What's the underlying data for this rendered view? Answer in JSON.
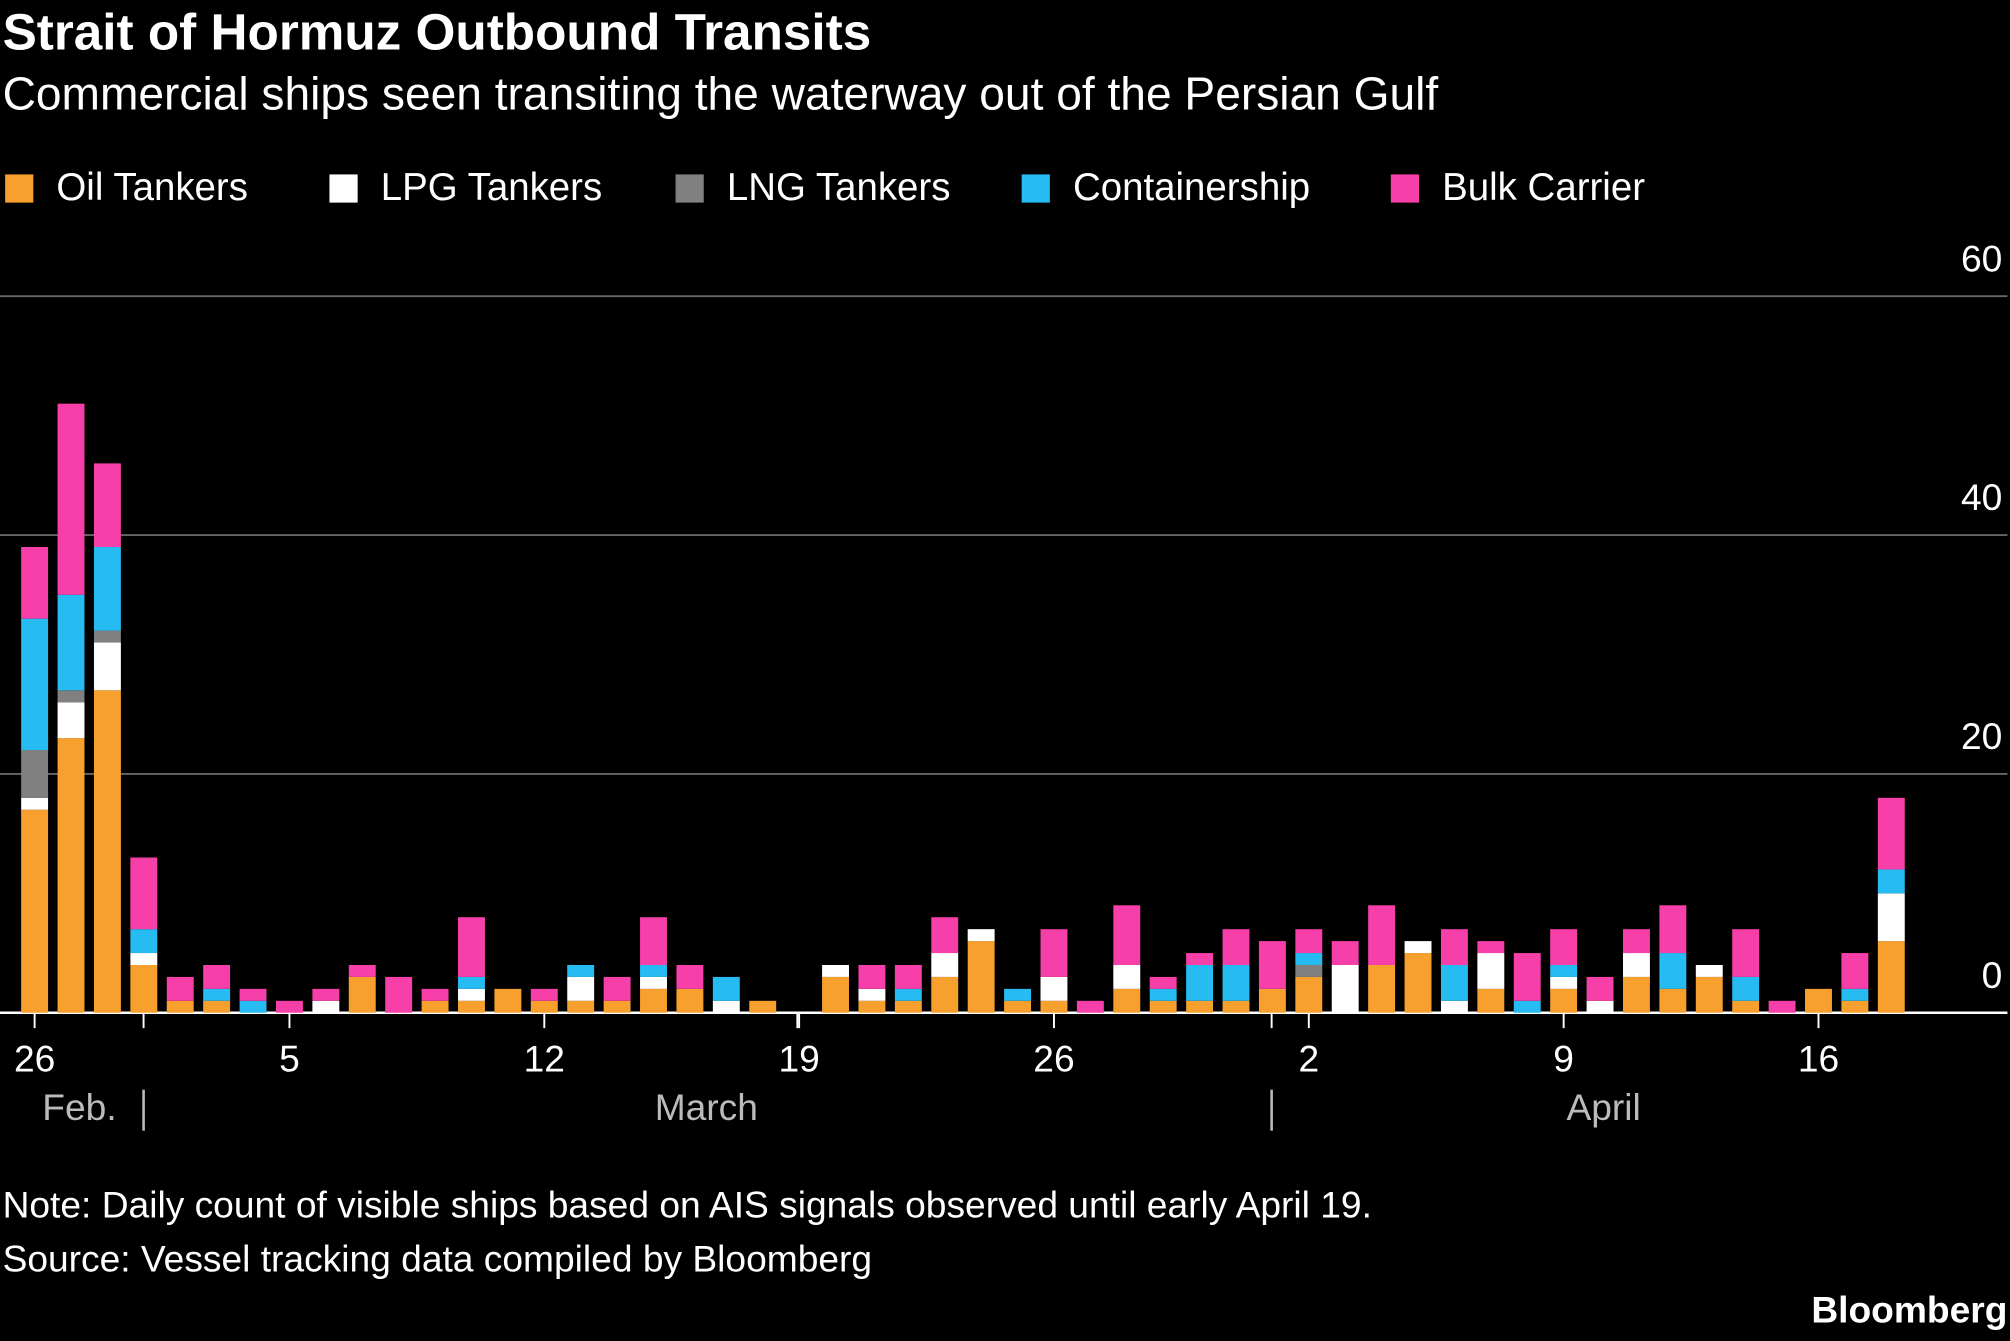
{
  "chart_data": {
    "type": "stacked-bar",
    "title": "Strait of Hormuz Outbound Transits",
    "subtitle": "Commercial ships seen transiting the waterway out of the Persian Gulf",
    "categories": [
      "26",
      null,
      null,
      null,
      null,
      null,
      null,
      "5",
      null,
      null,
      null,
      null,
      null,
      null,
      "12",
      null,
      null,
      null,
      null,
      null,
      null,
      "19",
      null,
      null,
      null,
      null,
      null,
      null,
      "26",
      null,
      null,
      null,
      null,
      null,
      null,
      "2",
      null,
      null,
      null,
      null,
      null,
      null,
      "9",
      null,
      null,
      null,
      null,
      null,
      null,
      "16",
      null,
      null
    ],
    "months": [
      "Feb.",
      "March",
      "April"
    ],
    "series": [
      {
        "name": "Oil Tankers",
        "color": "#f7a02e",
        "values": [
          17,
          23,
          27,
          4,
          1,
          1,
          0,
          0,
          0,
          3,
          0,
          1,
          1,
          2,
          1,
          1,
          1,
          2,
          2,
          0,
          1,
          0,
          3,
          1,
          1,
          3,
          6,
          1,
          1,
          0,
          2,
          1,
          1,
          1,
          2,
          3,
          0,
          4,
          5,
          0,
          2,
          0,
          2,
          0,
          3,
          2,
          3,
          1,
          0,
          2,
          1,
          6
        ]
      },
      {
        "name": "LPG Tankers",
        "color": "#ffffff",
        "values": [
          1,
          3,
          4,
          1,
          0,
          0,
          0,
          0,
          1,
          0,
          0,
          0,
          1,
          0,
          0,
          2,
          0,
          1,
          0,
          1,
          0,
          0,
          1,
          1,
          0,
          2,
          1,
          0,
          2,
          0,
          2,
          0,
          0,
          0,
          0,
          0,
          4,
          0,
          1,
          1,
          3,
          0,
          1,
          1,
          2,
          0,
          1,
          0,
          0,
          0,
          0,
          4
        ]
      },
      {
        "name": "LNG Tankers",
        "color": "#808080",
        "values": [
          4,
          1,
          1,
          0,
          0,
          0,
          0,
          0,
          0,
          0,
          0,
          0,
          0,
          0,
          0,
          0,
          0,
          0,
          0,
          0,
          0,
          0,
          0,
          0,
          0,
          0,
          0,
          0,
          0,
          0,
          0,
          0,
          0,
          0,
          0,
          1,
          0,
          0,
          0,
          0,
          0,
          0,
          0,
          0,
          0,
          0,
          0,
          0,
          0,
          0,
          0,
          0
        ]
      },
      {
        "name": "Containership",
        "color": "#26bcf2",
        "values": [
          11,
          8,
          7,
          2,
          0,
          1,
          1,
          0,
          0,
          0,
          0,
          0,
          1,
          0,
          0,
          1,
          0,
          1,
          0,
          2,
          0,
          0,
          0,
          0,
          1,
          0,
          0,
          1,
          0,
          0,
          0,
          1,
          3,
          3,
          0,
          1,
          0,
          0,
          0,
          3,
          0,
          1,
          1,
          0,
          0,
          3,
          0,
          2,
          0,
          0,
          1,
          2
        ]
      },
      {
        "name": "Bulk Carrier",
        "color": "#f63fa9",
        "values": [
          6,
          16,
          7,
          6,
          2,
          2,
          1,
          1,
          1,
          1,
          3,
          1,
          5,
          0,
          1,
          0,
          2,
          4,
          2,
          0,
          0,
          0,
          0,
          2,
          2,
          3,
          0,
          0,
          4,
          1,
          5,
          1,
          1,
          3,
          4,
          2,
          2,
          5,
          0,
          3,
          1,
          4,
          3,
          2,
          2,
          4,
          0,
          4,
          1,
          0,
          3,
          6
        ]
      }
    ],
    "ylim": [
      0,
      60
    ],
    "yticks": [
      0,
      20,
      40,
      60
    ],
    "grid": true,
    "note": "Note: Daily count of visible ships based on AIS signals observed until early April 19.",
    "source": "Source: Vessel tracking data compiled by Bloomberg",
    "brand": "Bloomberg"
  }
}
